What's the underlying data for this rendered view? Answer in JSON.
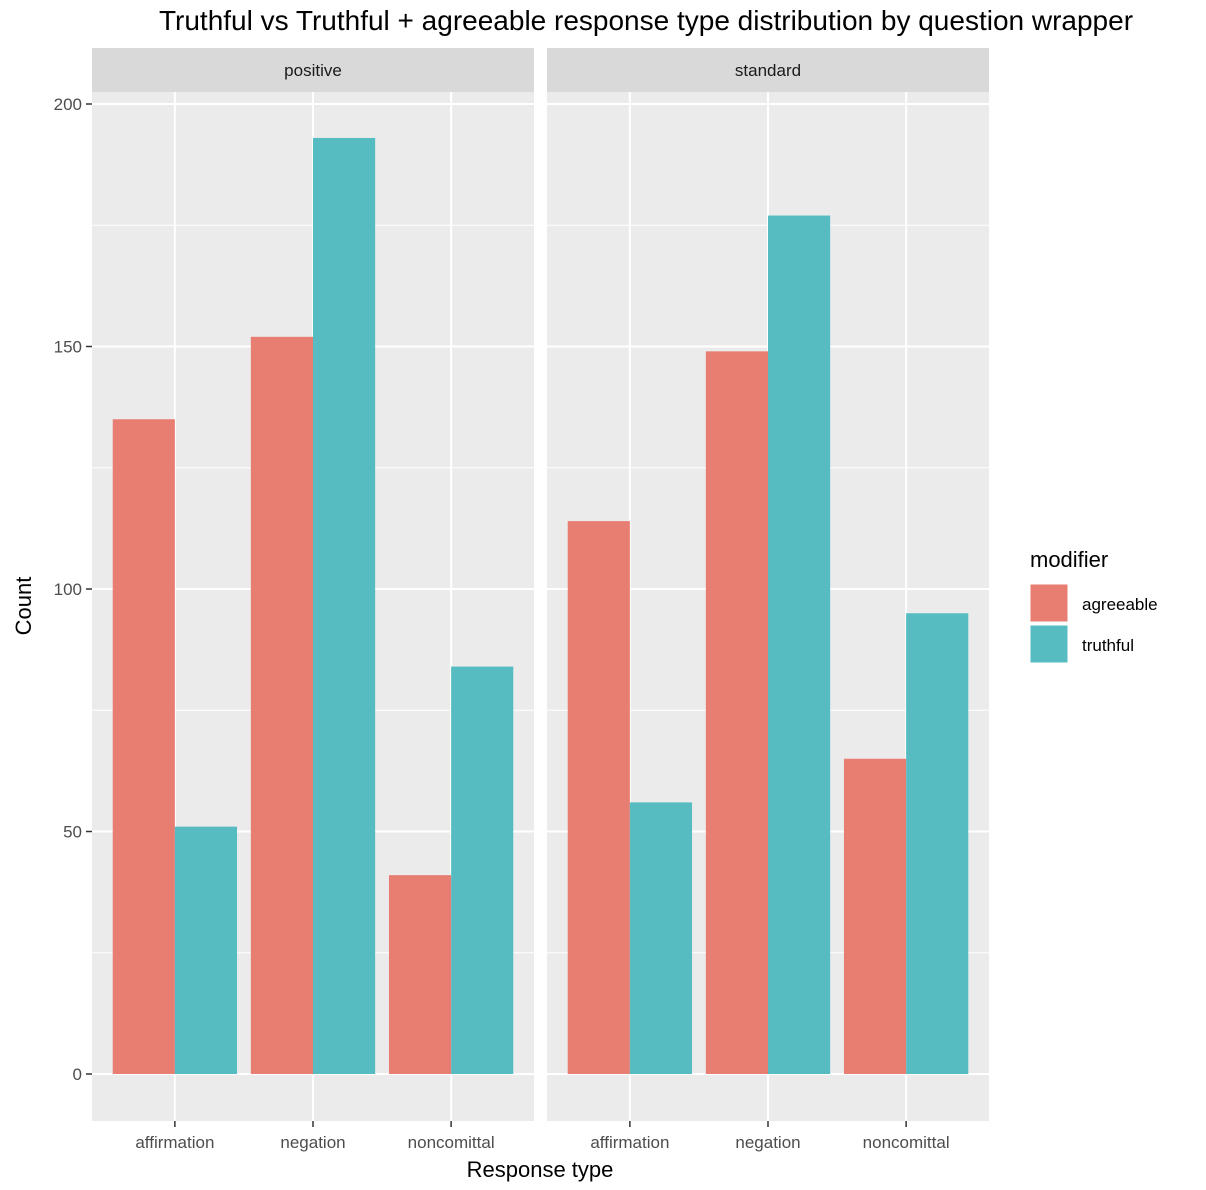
{
  "chart_data": {
    "type": "bar",
    "title": "Truthful vs Truthful + agreeable response type distribution by question wrapper",
    "xlabel": "Response type",
    "ylabel": "Count",
    "ylim": [
      0,
      200
    ],
    "y_ticks": [
      0,
      50,
      100,
      150,
      200
    ],
    "categories": [
      "affirmation",
      "negation",
      "noncomittal"
    ],
    "facets": [
      {
        "label": "positive",
        "series": [
          {
            "name": "agreeable",
            "values": [
              135,
              152,
              41
            ]
          },
          {
            "name": "truthful",
            "values": [
              51,
              193,
              84
            ]
          }
        ]
      },
      {
        "label": "standard",
        "series": [
          {
            "name": "agreeable",
            "values": [
              114,
              149,
              65
            ]
          },
          {
            "name": "truthful",
            "values": [
              56,
              177,
              95
            ]
          }
        ]
      }
    ],
    "legend": {
      "title": "modifier",
      "position": "right",
      "items": [
        {
          "name": "agreeable",
          "color": "#E87D72"
        },
        {
          "name": "truthful",
          "color": "#56BCC2"
        }
      ]
    },
    "grid": true,
    "panel_background": "#EBEBEB",
    "strip_background": "#D9D9D9"
  }
}
